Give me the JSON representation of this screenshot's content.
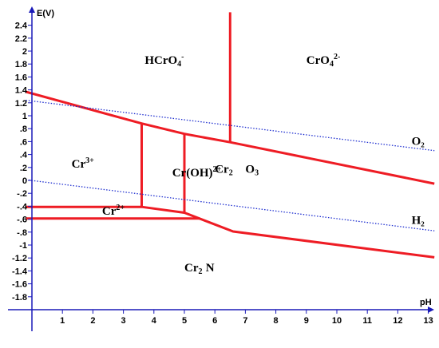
{
  "chart_data": {
    "type": "line",
    "title": "",
    "xlabel": "pH",
    "ylabel": "E(V)",
    "xlim": [
      -0.2,
      13.2
    ],
    "ylim": [
      -2.0,
      2.65
    ],
    "x_ticks": [
      1,
      2,
      3,
      4,
      5,
      6,
      7,
      8,
      9,
      10,
      11,
      12,
      13
    ],
    "y_ticks": [
      -1.8,
      -1.6,
      -1.4,
      -1.2,
      -1,
      -0.8,
      -0.6,
      -0.4,
      -0.2,
      0,
      0.2,
      0.4,
      0.6,
      0.8,
      1,
      1.2,
      1.4,
      1.6,
      1.8,
      2,
      2.2,
      2.4
    ],
    "grid": false,
    "colors": {
      "boundary": "#ee1c24",
      "water": "#1f2fd0",
      "axis": "#1a1ab8"
    },
    "boundaries": [
      {
        "points": [
          [
            -0.2,
            1.37
          ],
          [
            3.6,
            0.88
          ],
          [
            5.0,
            0.72
          ],
          [
            6.5,
            0.59
          ],
          [
            13.2,
            -0.05
          ]
        ]
      },
      {
        "points": [
          [
            6.5,
            2.6
          ],
          [
            6.5,
            0.59
          ]
        ]
      },
      {
        "points": [
          [
            3.6,
            0.88
          ],
          [
            3.6,
            -0.41
          ]
        ]
      },
      {
        "points": [
          [
            5.0,
            0.72
          ],
          [
            5.0,
            -0.5
          ]
        ]
      },
      {
        "points": [
          [
            -0.2,
            -0.41
          ],
          [
            3.6,
            -0.41
          ],
          [
            5.0,
            -0.5
          ],
          [
            6.6,
            -0.79
          ],
          [
            13.2,
            -1.19
          ]
        ]
      },
      {
        "points": [
          [
            -0.2,
            -0.59
          ],
          [
            5.5,
            -0.59
          ]
        ]
      }
    ],
    "water_lines": [
      {
        "label": "O₂",
        "points": [
          [
            -0.2,
            1.24
          ],
          [
            13.2,
            0.46
          ]
        ]
      },
      {
        "label": "H₂",
        "points": [
          [
            -0.2,
            0.01
          ],
          [
            13.2,
            -0.78
          ]
        ]
      }
    ],
    "regions": [
      {
        "base": "HCrO",
        "sub": "4",
        "sup": "-",
        "x": 3.7,
        "y": 1.8
      },
      {
        "base": "CrO",
        "sub": "4",
        "sup": "2-",
        "x": 9.0,
        "y": 1.8
      },
      {
        "base": "Cr",
        "sub": "",
        "sup": "3+",
        "x": 1.3,
        "y": 0.2
      },
      {
        "base": "Cr(OH)",
        "sub": "",
        "sup": "2+",
        "x": 4.6,
        "y": 0.06
      },
      {
        "base": "Cr",
        "sub": "2",
        "sup": "",
        "x": 6.0,
        "y": 0.12
      },
      {
        "base": "O",
        "sub": "3",
        "sup": "",
        "x": 7.0,
        "y": 0.12
      },
      {
        "base": "Cr",
        "sub": "",
        "sup": "2+",
        "x": 2.3,
        "y": -0.53
      },
      {
        "base": "Cr",
        "sub": "2",
        "sup": "",
        "x": 5.0,
        "y": -1.41
      },
      {
        "base": "N",
        "sub": "",
        "sup": "",
        "x": 5.7,
        "y": -1.41
      }
    ]
  }
}
